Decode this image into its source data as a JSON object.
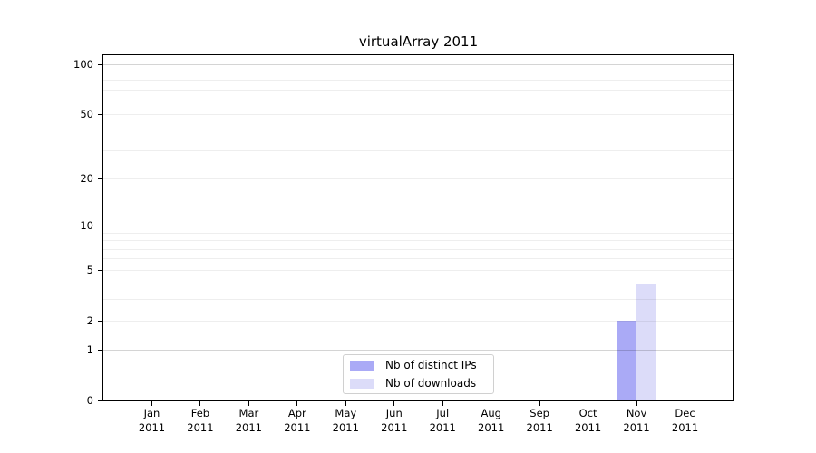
{
  "chart_data": {
    "type": "bar",
    "title": "virtualArray 2011",
    "categories": [
      "Jan",
      "Feb",
      "Mar",
      "Apr",
      "May",
      "Jun",
      "Jul",
      "Aug",
      "Sep",
      "Oct",
      "Nov",
      "Dec"
    ],
    "category_year": "2011",
    "series": [
      {
        "name": "Nb of distinct IPs",
        "color": "#aaaaf6",
        "values": [
          0,
          0,
          0,
          0,
          0,
          0,
          0,
          0,
          0,
          0,
          2,
          0
        ]
      },
      {
        "name": "Nb of downloads",
        "color": "#dcdcf9",
        "values": [
          0,
          0,
          0,
          0,
          0,
          0,
          0,
          0,
          0,
          0,
          4,
          0
        ]
      }
    ],
    "yscale": "log1p",
    "yticks": [
      0,
      1,
      2,
      5,
      10,
      20,
      50,
      100
    ],
    "ymax": 113,
    "grid": {
      "minor_values": [
        2,
        3,
        4,
        5,
        6,
        7,
        8,
        9,
        20,
        30,
        40,
        50,
        60,
        70,
        80,
        90
      ],
      "major_values": [
        1,
        10,
        100
      ],
      "minor_color": "rgba(0,0,0,0.065)",
      "major_color": "rgba(0,0,0,0.17)"
    },
    "legend_position": "bottom-center"
  }
}
